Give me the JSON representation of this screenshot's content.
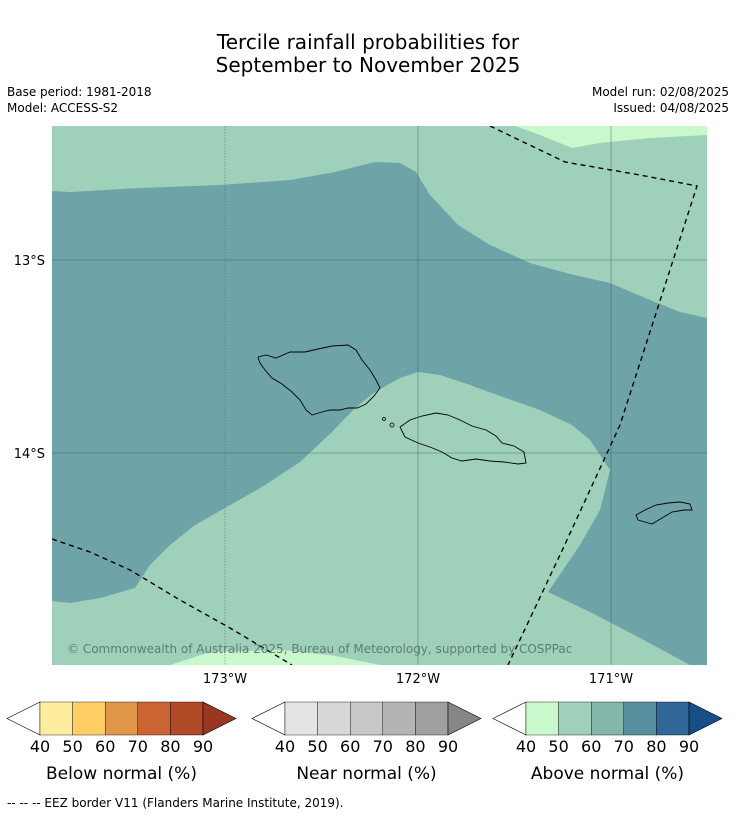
{
  "title_line1": "Tercile rainfall probabilities for",
  "title_line2": "September to November 2025",
  "meta_left": [
    "Base period: 1981-2018",
    "Model: ACCESS-S2"
  ],
  "meta_right": [
    "Model run: 02/08/2025",
    "Issued: 04/08/2025"
  ],
  "map": {
    "lat_labels": [
      "13°S",
      "14°S"
    ],
    "lon_labels": [
      "173°W",
      "172°W",
      "171°W"
    ],
    "copyright": "© Commonwealth of Australia 2025, Bureau of Meteorology, supported by COSPPac",
    "colors": {
      "above_50_60": "#9fd1ba",
      "above_70_80": "#6ea4a7",
      "above_40_50": "#c9f8cc"
    }
  },
  "colorbars": [
    {
      "label": "Below normal (%)",
      "ticks": [
        "40",
        "50",
        "60",
        "70",
        "80",
        "90"
      ],
      "colors": [
        "#ffed9f",
        "#ffcd66",
        "#e0974a",
        "#cc6333",
        "#b04a27",
        "#9a3723"
      ]
    },
    {
      "label": "Near normal (%)",
      "ticks": [
        "40",
        "50",
        "60",
        "70",
        "80",
        "90"
      ],
      "colors": [
        "#e4e4e4",
        "#d8d8d8",
        "#c8c8c8",
        "#b4b4b4",
        "#a0a0a0",
        "#868686"
      ]
    },
    {
      "label": "Above normal (%)",
      "ticks": [
        "40",
        "50",
        "60",
        "70",
        "80",
        "90"
      ],
      "colors": [
        "#c9f8cc",
        "#9fd1ba",
        "#83b7ab",
        "#5890a0",
        "#306798",
        "#184d85"
      ]
    }
  ],
  "footnote": "--  --  -- EEZ border V11 (Flanders Marine Institute, 2019)."
}
